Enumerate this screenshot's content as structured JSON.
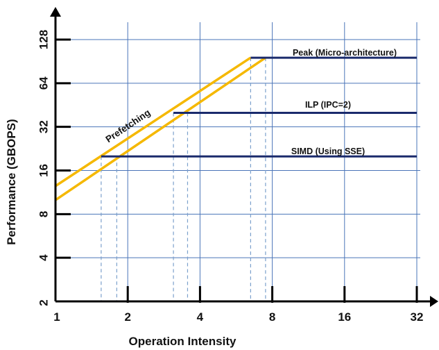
{
  "chart_data": {
    "type": "line",
    "title": "",
    "xlabel": "Operation Intensity",
    "ylabel": "Performance (GBOPS)",
    "x_scale": "log2",
    "y_scale": "log2",
    "xlim": [
      1,
      32
    ],
    "ylim": [
      2,
      128
    ],
    "x_ticks": [
      1,
      2,
      4,
      8,
      16,
      32
    ],
    "y_ticks": [
      2,
      4,
      8,
      16,
      32,
      64,
      128
    ],
    "grid": true,
    "ceilings": [
      {
        "name": "Peak (Micro-architecture)",
        "y": 96,
        "x_start": 6.5
      },
      {
        "name": "ILP  (IPC=2)",
        "y": 40,
        "x_start": 3.1
      },
      {
        "name": "SIMD (Using SSE)",
        "y": 20,
        "x_start": 1.55
      }
    ],
    "slopes": {
      "name": "Prefetching",
      "lines": [
        {
          "x": [
            1,
            6.5
          ],
          "y": [
            12.5,
            96
          ]
        },
        {
          "x": [
            1,
            7.5
          ],
          "y": [
            10,
            96
          ]
        }
      ]
    },
    "drop_lines_x": [
      1.55,
      1.8,
      3.1,
      3.55,
      6.5,
      7.5
    ],
    "colors": {
      "grid": "#4a74b8",
      "ceiling": "#1a2a6c",
      "slope": "#f5b800",
      "dashed": "#7ba0cc",
      "axis": "#000000"
    }
  }
}
